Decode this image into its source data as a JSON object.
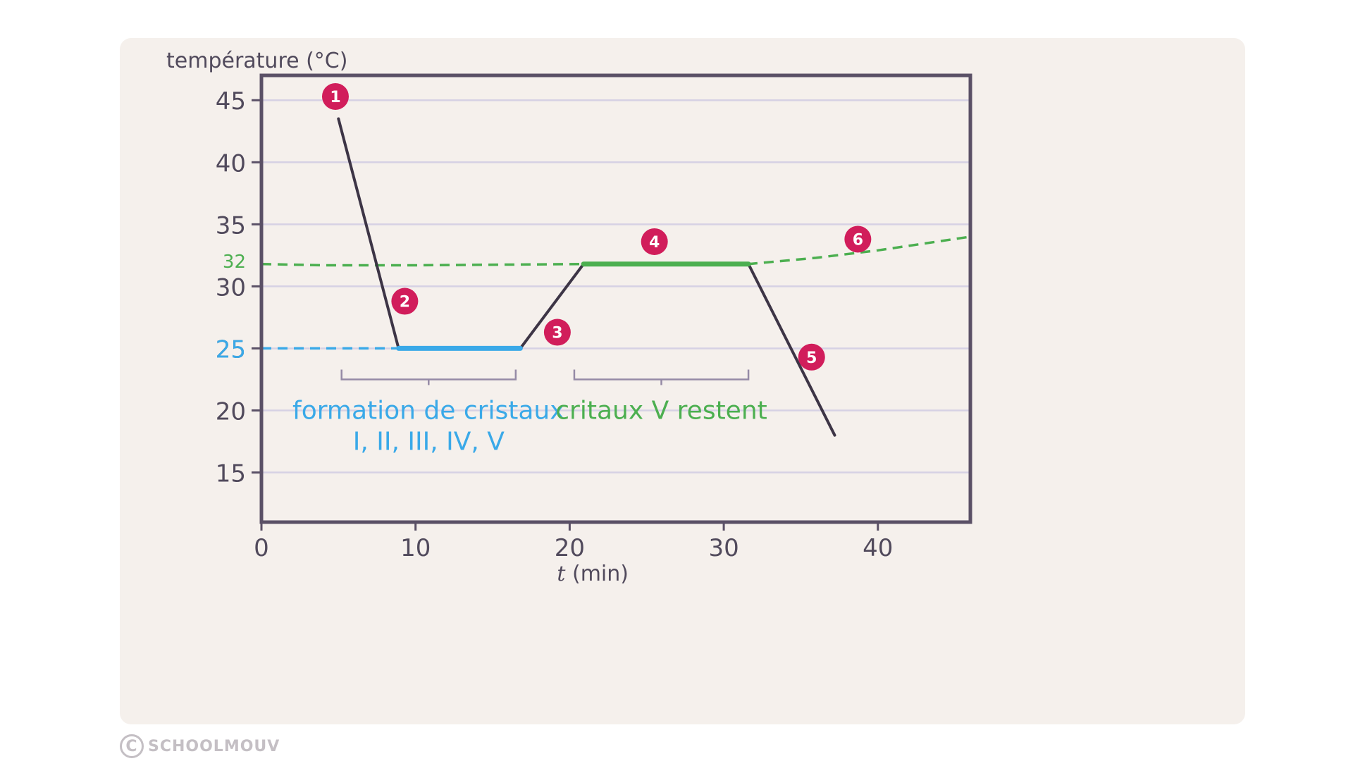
{
  "chart_data": {
    "type": "line",
    "ylabel": "température (°C)",
    "xlabel_var": "t",
    "xlabel_unit": "(min)",
    "xlim": [
      0,
      46
    ],
    "ylim": [
      11,
      47
    ],
    "x_ticks": [
      0,
      10,
      20,
      30,
      40
    ],
    "y_ticks": [
      15,
      20,
      25,
      30,
      35,
      40,
      45
    ],
    "special_ticks": [
      {
        "value": 32,
        "label": "32",
        "color": "#4caf50"
      },
      {
        "value": 25,
        "label": "25",
        "color": "#3aa9e8"
      }
    ],
    "grid": true,
    "series": [
      {
        "role": "cooling curve",
        "color": "#3d3546",
        "points": [
          [
            5,
            43.5
          ],
          [
            8.9,
            25
          ],
          [
            16.8,
            25
          ],
          [
            20.9,
            31.8
          ],
          [
            31.6,
            31.8
          ],
          [
            37.2,
            18
          ]
        ]
      },
      {
        "role": "crystallization plateau",
        "color": "#3aa9e8",
        "points": [
          [
            8.9,
            25
          ],
          [
            16.8,
            25
          ]
        ]
      },
      {
        "role": "crystal V plateau",
        "color": "#4caf50",
        "points": [
          [
            20.9,
            31.8
          ],
          [
            31.6,
            31.8
          ]
        ]
      }
    ],
    "reference_lines": [
      {
        "color": "#4caf50",
        "style": "dashed",
        "points": [
          [
            0,
            31.8
          ],
          [
            4,
            31.7
          ],
          [
            10,
            31.7
          ],
          [
            20.9,
            31.8
          ],
          [
            31.6,
            31.8
          ],
          [
            36,
            32.3
          ],
          [
            40,
            32.9
          ],
          [
            46,
            34
          ]
        ]
      },
      {
        "color": "#3aa9e8",
        "style": "dashed",
        "points": [
          [
            0,
            25
          ],
          [
            8.9,
            25
          ]
        ]
      }
    ],
    "markers": [
      {
        "label": "1",
        "x": 4.8,
        "y": 45.3
      },
      {
        "label": "2",
        "x": 9.3,
        "y": 28.8
      },
      {
        "label": "3",
        "x": 19.2,
        "y": 26.3
      },
      {
        "label": "4",
        "x": 25.5,
        "y": 33.6
      },
      {
        "label": "5",
        "x": 35.7,
        "y": 24.3
      },
      {
        "label": "6",
        "x": 38.7,
        "y": 33.8
      }
    ],
    "annotations": [
      {
        "lines": [
          "formation de cristaux",
          "I, II, III, IV, V"
        ],
        "color": "#3aa9e8",
        "x_start": 5.2,
        "x_end": 16.5
      },
      {
        "lines": [
          "critaux V restent"
        ],
        "color": "#4caf50",
        "x_start": 20.3,
        "x_end": 31.6
      }
    ],
    "colors": {
      "axis": "#5a5066",
      "grid": "#d6d1e4",
      "marker": "#d11d5b",
      "bracket": "#958aa6",
      "tick_text": "#514a5c"
    }
  },
  "watermark": {
    "icon": "copyright-icon",
    "symbol": "C",
    "text": "SCHOOLMOUV"
  }
}
